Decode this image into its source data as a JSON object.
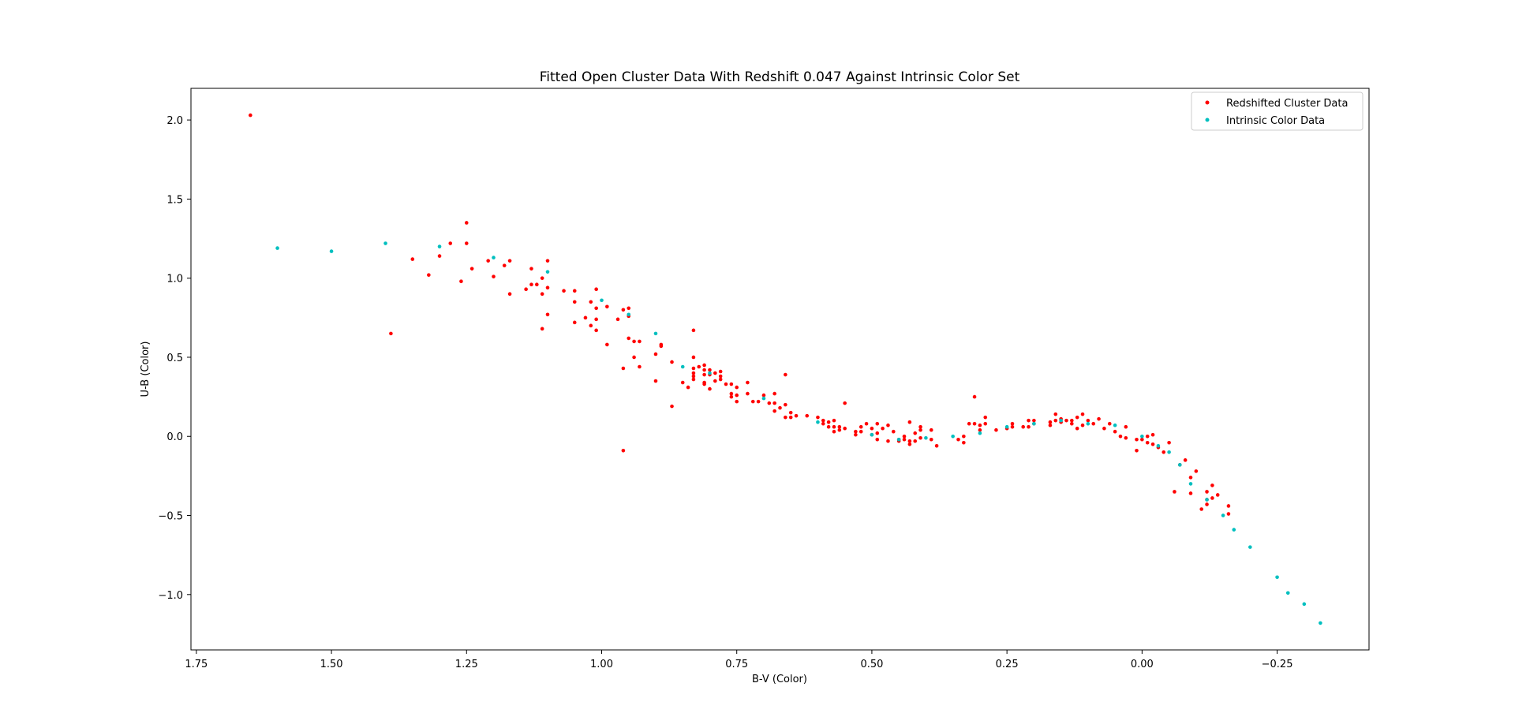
{
  "chart_data": {
    "type": "scatter",
    "title": "Fitted Open Cluster Data With Redshift 0.047 Against Intrinsic Color Set",
    "xlabel": "B-V (Color)",
    "ylabel": "U-B (Color)",
    "xlim": [
      1.76,
      -0.42
    ],
    "ylim": [
      -1.35,
      2.2
    ],
    "x_inverted": true,
    "grid": false,
    "legend_position": "top-right",
    "x_ticks": [
      1.75,
      1.5,
      1.25,
      1.0,
      0.75,
      0.5,
      0.25,
      0.0,
      -0.25
    ],
    "x_tick_labels": [
      "1.75",
      "1.50",
      "1.25",
      "1.00",
      "0.75",
      "0.50",
      "0.25",
      "0.00",
      "−0.25"
    ],
    "y_ticks": [
      2.0,
      1.5,
      1.0,
      0.5,
      0.0,
      -0.5,
      -1.0
    ],
    "y_tick_labels": [
      "2.0",
      "1.5",
      "1.0",
      "0.5",
      "0.0",
      "−0.5",
      "−1.0"
    ],
    "series": [
      {
        "name": "Redshifted Cluster Data",
        "color": "#ff0000",
        "points": [
          [
            1.65,
            2.03
          ],
          [
            1.39,
            0.65
          ],
          [
            1.35,
            1.12
          ],
          [
            1.32,
            1.02
          ],
          [
            1.3,
            1.14
          ],
          [
            1.28,
            1.22
          ],
          [
            1.26,
            0.98
          ],
          [
            1.25,
            1.35
          ],
          [
            1.25,
            1.22
          ],
          [
            1.24,
            1.06
          ],
          [
            1.21,
            1.11
          ],
          [
            1.2,
            1.01
          ],
          [
            1.18,
            1.08
          ],
          [
            1.17,
            1.11
          ],
          [
            1.17,
            0.9
          ],
          [
            1.14,
            0.93
          ],
          [
            1.13,
            1.06
          ],
          [
            1.13,
            0.96
          ],
          [
            1.12,
            0.96
          ],
          [
            1.11,
            1.0
          ],
          [
            1.11,
            0.9
          ],
          [
            1.11,
            0.68
          ],
          [
            1.1,
            1.11
          ],
          [
            1.1,
            0.94
          ],
          [
            1.1,
            0.77
          ],
          [
            1.07,
            0.92
          ],
          [
            1.05,
            0.92
          ],
          [
            1.05,
            0.85
          ],
          [
            1.05,
            0.72
          ],
          [
            1.03,
            0.75
          ],
          [
            1.02,
            0.85
          ],
          [
            1.02,
            0.7
          ],
          [
            1.01,
            0.93
          ],
          [
            1.01,
            0.81
          ],
          [
            1.01,
            0.74
          ],
          [
            1.01,
            0.67
          ],
          [
            0.99,
            0.82
          ],
          [
            0.99,
            0.58
          ],
          [
            0.97,
            0.74
          ],
          [
            0.96,
            0.8
          ],
          [
            0.96,
            0.43
          ],
          [
            0.96,
            -0.09
          ],
          [
            0.95,
            0.81
          ],
          [
            0.95,
            0.76
          ],
          [
            0.95,
            0.62
          ],
          [
            0.94,
            0.6
          ],
          [
            0.94,
            0.5
          ],
          [
            0.93,
            0.6
          ],
          [
            0.93,
            0.44
          ],
          [
            0.9,
            0.52
          ],
          [
            0.9,
            0.35
          ],
          [
            0.89,
            0.58
          ],
          [
            0.89,
            0.57
          ],
          [
            0.87,
            0.47
          ],
          [
            0.87,
            0.19
          ],
          [
            0.85,
            0.34
          ],
          [
            0.84,
            0.31
          ],
          [
            0.83,
            0.67
          ],
          [
            0.83,
            0.5
          ],
          [
            0.83,
            0.43
          ],
          [
            0.83,
            0.4
          ],
          [
            0.83,
            0.38
          ],
          [
            0.83,
            0.36
          ],
          [
            0.82,
            0.44
          ],
          [
            0.81,
            0.45
          ],
          [
            0.81,
            0.42
          ],
          [
            0.81,
            0.39
          ],
          [
            0.81,
            0.34
          ],
          [
            0.81,
            0.33
          ],
          [
            0.8,
            0.42
          ],
          [
            0.8,
            0.39
          ],
          [
            0.8,
            0.3
          ],
          [
            0.79,
            0.4
          ],
          [
            0.79,
            0.35
          ],
          [
            0.78,
            0.41
          ],
          [
            0.78,
            0.38
          ],
          [
            0.78,
            0.36
          ],
          [
            0.77,
            0.33
          ],
          [
            0.76,
            0.33
          ],
          [
            0.76,
            0.27
          ],
          [
            0.76,
            0.25
          ],
          [
            0.75,
            0.31
          ],
          [
            0.75,
            0.26
          ],
          [
            0.75,
            0.22
          ],
          [
            0.73,
            0.34
          ],
          [
            0.73,
            0.27
          ],
          [
            0.72,
            0.22
          ],
          [
            0.71,
            0.22
          ],
          [
            0.7,
            0.26
          ],
          [
            0.69,
            0.21
          ],
          [
            0.68,
            0.27
          ],
          [
            0.68,
            0.21
          ],
          [
            0.68,
            0.16
          ],
          [
            0.67,
            0.18
          ],
          [
            0.66,
            0.39
          ],
          [
            0.66,
            0.2
          ],
          [
            0.66,
            0.12
          ],
          [
            0.65,
            0.15
          ],
          [
            0.65,
            0.12
          ],
          [
            0.64,
            0.13
          ],
          [
            0.62,
            0.13
          ],
          [
            0.6,
            0.12
          ],
          [
            0.59,
            0.1
          ],
          [
            0.59,
            0.08
          ],
          [
            0.58,
            0.09
          ],
          [
            0.58,
            0.06
          ],
          [
            0.57,
            0.1
          ],
          [
            0.57,
            0.06
          ],
          [
            0.57,
            0.03
          ],
          [
            0.56,
            0.06
          ],
          [
            0.56,
            0.04
          ],
          [
            0.55,
            0.21
          ],
          [
            0.55,
            0.05
          ],
          [
            0.53,
            0.03
          ],
          [
            0.53,
            0.01
          ],
          [
            0.52,
            0.06
          ],
          [
            0.52,
            0.03
          ],
          [
            0.51,
            0.08
          ],
          [
            0.5,
            0.05
          ],
          [
            0.5,
            0.01
          ],
          [
            0.49,
            0.08
          ],
          [
            0.49,
            0.02
          ],
          [
            0.49,
            -0.02
          ],
          [
            0.48,
            0.05
          ],
          [
            0.47,
            0.07
          ],
          [
            0.47,
            -0.03
          ],
          [
            0.46,
            0.03
          ],
          [
            0.45,
            -0.02
          ],
          [
            0.45,
            -0.03
          ],
          [
            0.44,
            0.0
          ],
          [
            0.44,
            -0.02
          ],
          [
            0.43,
            0.09
          ],
          [
            0.43,
            -0.03
          ],
          [
            0.43,
            -0.05
          ],
          [
            0.42,
            0.02
          ],
          [
            0.42,
            -0.03
          ],
          [
            0.41,
            0.06
          ],
          [
            0.41,
            0.04
          ],
          [
            0.41,
            -0.01
          ],
          [
            0.39,
            0.04
          ],
          [
            0.39,
            -0.02
          ],
          [
            0.38,
            -0.06
          ],
          [
            0.34,
            -0.02
          ],
          [
            0.33,
            0.0
          ],
          [
            0.33,
            -0.04
          ],
          [
            0.32,
            0.08
          ],
          [
            0.31,
            0.25
          ],
          [
            0.31,
            0.08
          ],
          [
            0.3,
            0.07
          ],
          [
            0.3,
            0.04
          ],
          [
            0.29,
            0.12
          ],
          [
            0.29,
            0.08
          ],
          [
            0.27,
            0.04
          ],
          [
            0.25,
            0.05
          ],
          [
            0.24,
            0.08
          ],
          [
            0.24,
            0.06
          ],
          [
            0.22,
            0.06
          ],
          [
            0.21,
            0.1
          ],
          [
            0.21,
            0.06
          ],
          [
            0.2,
            0.1
          ],
          [
            0.2,
            0.08
          ],
          [
            0.17,
            0.09
          ],
          [
            0.17,
            0.07
          ],
          [
            0.16,
            0.14
          ],
          [
            0.16,
            0.1
          ],
          [
            0.15,
            0.11
          ],
          [
            0.15,
            0.09
          ],
          [
            0.14,
            0.1
          ],
          [
            0.13,
            0.1
          ],
          [
            0.13,
            0.08
          ],
          [
            0.12,
            0.12
          ],
          [
            0.12,
            0.05
          ],
          [
            0.11,
            0.14
          ],
          [
            0.11,
            0.07
          ],
          [
            0.1,
            0.1
          ],
          [
            0.09,
            0.08
          ],
          [
            0.08,
            0.11
          ],
          [
            0.07,
            0.05
          ],
          [
            0.06,
            0.08
          ],
          [
            0.05,
            0.03
          ],
          [
            0.04,
            0.0
          ],
          [
            0.03,
            0.06
          ],
          [
            0.03,
            -0.01
          ],
          [
            0.01,
            -0.09
          ],
          [
            0.01,
            -0.02
          ],
          [
            0.0,
            -0.02
          ],
          [
            -0.01,
            0.0
          ],
          [
            -0.01,
            -0.04
          ],
          [
            -0.02,
            0.01
          ],
          [
            -0.02,
            -0.05
          ],
          [
            -0.03,
            -0.07
          ],
          [
            -0.04,
            -0.1
          ],
          [
            -0.05,
            -0.04
          ],
          [
            -0.06,
            -0.35
          ],
          [
            -0.07,
            -0.18
          ],
          [
            -0.08,
            -0.15
          ],
          [
            -0.09,
            -0.36
          ],
          [
            -0.09,
            -0.26
          ],
          [
            -0.1,
            -0.22
          ],
          [
            -0.11,
            -0.46
          ],
          [
            -0.12,
            -0.43
          ],
          [
            -0.12,
            -0.35
          ],
          [
            -0.12,
            -0.4
          ],
          [
            -0.13,
            -0.31
          ],
          [
            -0.13,
            -0.39
          ],
          [
            -0.14,
            -0.37
          ],
          [
            -0.16,
            -0.44
          ],
          [
            -0.16,
            -0.49
          ]
        ]
      },
      {
        "name": "Intrinsic Color Data",
        "color": "#00bfbf",
        "points": [
          [
            1.6,
            1.19
          ],
          [
            1.5,
            1.17
          ],
          [
            1.4,
            1.22
          ],
          [
            1.3,
            1.2
          ],
          [
            1.2,
            1.13
          ],
          [
            1.1,
            1.04
          ],
          [
            1.0,
            0.86
          ],
          [
            0.95,
            0.77
          ],
          [
            0.9,
            0.65
          ],
          [
            0.85,
            0.44
          ],
          [
            0.8,
            0.4
          ],
          [
            0.7,
            0.24
          ],
          [
            0.6,
            0.09
          ],
          [
            0.5,
            0.01
          ],
          [
            0.45,
            -0.02
          ],
          [
            0.4,
            -0.01
          ],
          [
            0.35,
            0.0
          ],
          [
            0.3,
            0.02
          ],
          [
            0.25,
            0.06
          ],
          [
            0.2,
            0.08
          ],
          [
            0.15,
            0.1
          ],
          [
            0.1,
            0.08
          ],
          [
            0.05,
            0.07
          ],
          [
            0.0,
            0.0
          ],
          [
            -0.03,
            -0.06
          ],
          [
            -0.05,
            -0.1
          ],
          [
            -0.07,
            -0.18
          ],
          [
            -0.09,
            -0.3
          ],
          [
            -0.12,
            -0.4
          ],
          [
            -0.15,
            -0.5
          ],
          [
            -0.17,
            -0.59
          ],
          [
            -0.2,
            -0.7
          ],
          [
            -0.25,
            -0.89
          ],
          [
            -0.27,
            -0.99
          ],
          [
            -0.3,
            -1.06
          ],
          [
            -0.33,
            -1.18
          ]
        ]
      }
    ]
  }
}
